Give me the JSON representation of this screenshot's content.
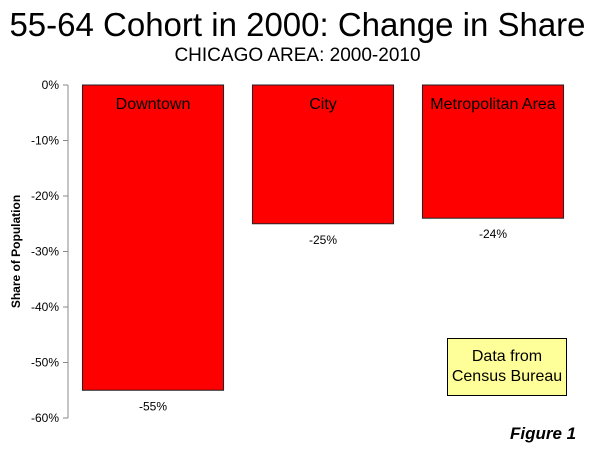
{
  "title": "55-64 Cohort in 2000: Change in Share",
  "subtitle": "CHICAGO AREA: 2000-2010",
  "note": {
    "line1": "Data from",
    "line2": "Census Bureau"
  },
  "figure_label": "Figure 1",
  "colors": {
    "bar": "#ff0000",
    "note_background": "#ffff99"
  },
  "chart_data": {
    "type": "bar",
    "title": "55-64 Cohort in 2000: Change in Share",
    "subtitle": "CHICAGO AREA: 2000-2010",
    "categories": [
      "Downtown",
      "City",
      "Metropolitan Area"
    ],
    "values": [
      -55,
      -25,
      -24
    ],
    "data_labels": [
      "-55%",
      "-25%",
      "-24%"
    ],
    "xlabel": "",
    "ylabel": "Share of Population",
    "ylim": [
      -60,
      0
    ],
    "yticks": [
      0,
      -10,
      -20,
      -30,
      -40,
      -50,
      -60
    ],
    "ytick_labels": [
      "0%",
      "-10%",
      "-20%",
      "-30%",
      "-40%",
      "-50%",
      "-60%"
    ],
    "grid": false,
    "legend": "none"
  }
}
